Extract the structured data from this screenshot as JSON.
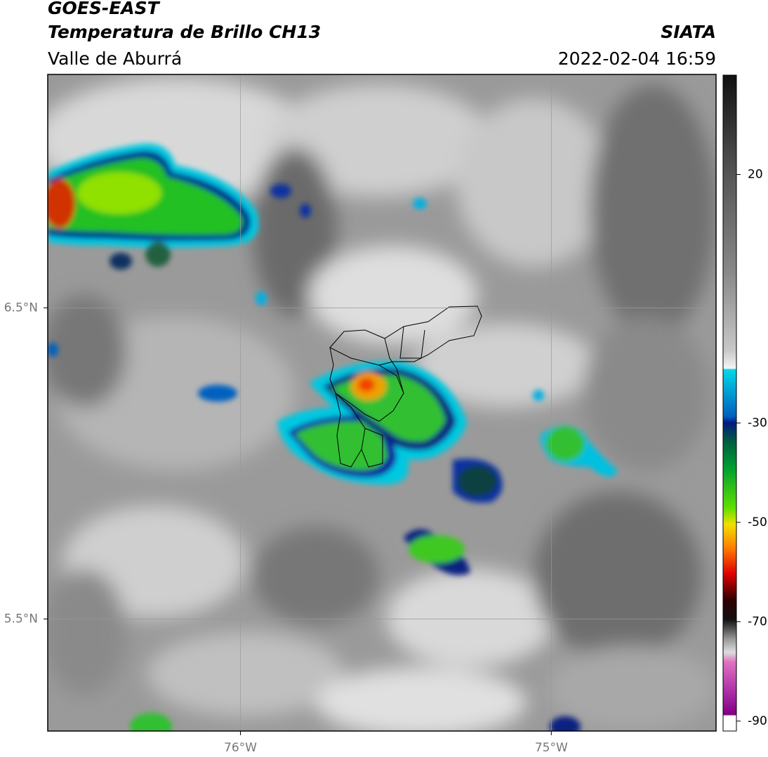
{
  "header": {
    "title": "GOES-EAST",
    "subtitle": "Temperatura de Brillo CH13",
    "region": "Valle de Aburrá",
    "source": "SIATA",
    "datetime": "2022-02-04 16:59"
  },
  "map": {
    "xlim": [
      -76.62,
      -74.47
    ],
    "ylim": [
      5.14,
      7.25
    ],
    "xticks": [
      {
        "value": -76,
        "label": "76°W"
      },
      {
        "value": -75,
        "label": "75°W"
      }
    ],
    "yticks": [
      {
        "value": 6.5,
        "label": "6.5°N"
      },
      {
        "value": 5.5,
        "label": "5.5°N"
      }
    ],
    "grid": true
  },
  "colorbar": {
    "lim": [
      -92,
      40
    ],
    "ticks": [
      20,
      -30,
      -50,
      -70,
      -90
    ]
  }
}
